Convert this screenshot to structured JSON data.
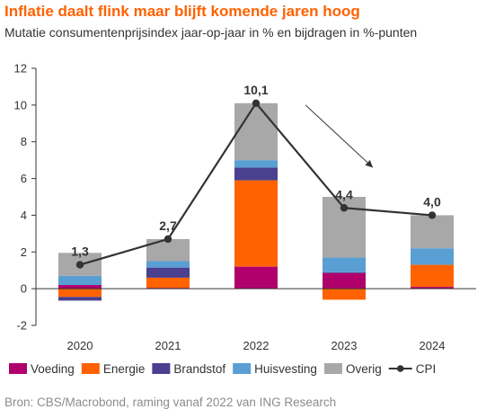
{
  "header": {
    "title": "Inflatie daalt flink maar blijft komende jaren hoog",
    "subtitle": "Mutatie consumentenprijsindex jaar-op-jaar in % en bijdragen in %-punten"
  },
  "footer": {
    "source": "Bron: CBS/Macrobond, raming vanaf 2022 van ING Research"
  },
  "chart_data": {
    "type": "bar",
    "stacked": true,
    "categories": [
      "2020",
      "2021",
      "2022",
      "2023",
      "2024"
    ],
    "y_ticks": [
      "12",
      "10",
      "8",
      "6",
      "4",
      "2",
      "0",
      "-2"
    ],
    "ylim": [
      -2,
      12
    ],
    "grid": false,
    "legend_position": "bottom",
    "series": [
      {
        "name": "Voeding",
        "color": "#B0006C",
        "values": [
          0.2,
          0.05,
          1.2,
          0.85,
          0.1
        ]
      },
      {
        "name": "Energie",
        "color": "#FF6200",
        "values": [
          -0.45,
          0.55,
          4.7,
          -0.6,
          1.2
        ]
      },
      {
        "name": "Brandstof",
        "color": "#4B3F8F",
        "values": [
          -0.2,
          0.55,
          0.7,
          0.05,
          0.0
        ]
      },
      {
        "name": "Huisvesting",
        "color": "#5A9FD4",
        "values": [
          0.5,
          0.35,
          0.4,
          0.8,
          0.9
        ]
      },
      {
        "name": "Overig",
        "color": "#A8A8A8",
        "values": [
          1.25,
          1.2,
          3.1,
          3.3,
          1.8
        ]
      }
    ],
    "line": {
      "name": "CPI",
      "color": "#333333",
      "values": [
        1.3,
        2.7,
        10.1,
        4.4,
        4.0
      ],
      "labels": [
        "1,3",
        "2,7",
        "10,1",
        "4,4",
        "4,0"
      ]
    },
    "annotation": "arrow from 2022 peak pointing down toward 2023"
  }
}
